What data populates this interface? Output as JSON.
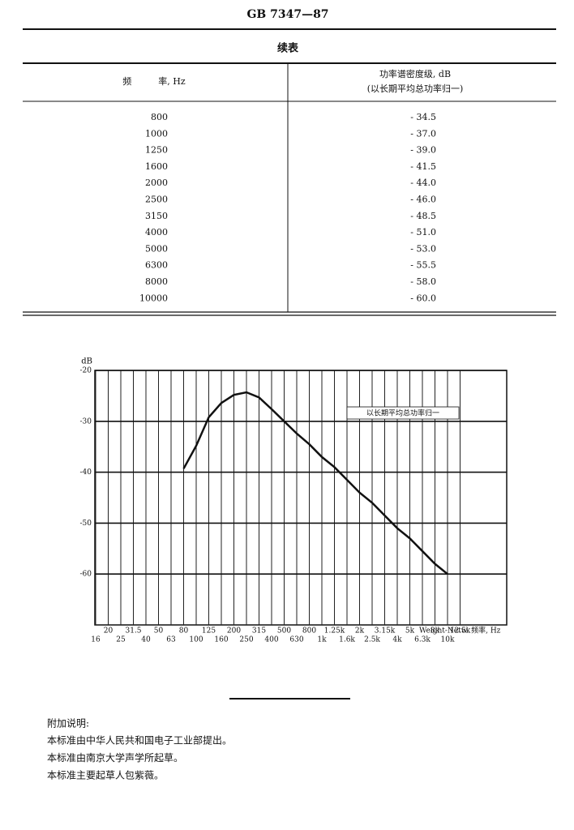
{
  "header": {
    "code": "GB 7347—87"
  },
  "table": {
    "caption": "续表",
    "columns": [
      "频　　　率, Hz",
      [
        "功率谱密度级, dB",
        "(以长期平均总功率归一)"
      ]
    ],
    "rows": [
      [
        "800",
        "- 34.5"
      ],
      [
        "1000",
        "- 37.0"
      ],
      [
        "1250",
        "- 39.0"
      ],
      [
        "1600",
        "- 41.5"
      ],
      [
        "2000",
        "- 44.0"
      ],
      [
        "2500",
        "- 46.0"
      ],
      [
        "3150",
        "- 48.5"
      ],
      [
        "4000",
        "- 51.0"
      ],
      [
        "5000",
        "- 53.0"
      ],
      [
        "6300",
        "- 55.5"
      ],
      [
        "8000",
        "- 58.0"
      ],
      [
        "10000",
        "- 60.0"
      ]
    ]
  },
  "chart_data": {
    "type": "line",
    "y_label": "dB",
    "x_label": "Weight-Netw.  频率, Hz",
    "annotation": "以长期平均总功率归一",
    "categories": [
      "16",
      "20",
      "25",
      "31.5",
      "40",
      "50",
      "63",
      "80",
      "100",
      "125",
      "160",
      "200",
      "250",
      "315",
      "400",
      "500",
      "630",
      "800",
      "1k",
      "1.25k",
      "1.6k",
      "2k",
      "2.5k",
      "3.15k",
      "4k",
      "5k",
      "6.3k",
      "8k",
      "10k",
      "12.5k"
    ],
    "values": [
      null,
      null,
      null,
      null,
      null,
      null,
      null,
      -39.3,
      -34.8,
      -29.2,
      -26.4,
      -24.8,
      -24.3,
      -25.3,
      -27.6,
      -30,
      -32.4,
      -34.5,
      -37,
      -39,
      -41.5,
      -44,
      -46,
      -48.5,
      -51,
      -53,
      -55.5,
      -58,
      -60,
      null
    ],
    "color": "#111111",
    "ylim": [
      -70,
      -20
    ],
    "yticks": [
      -20,
      -30,
      -40,
      -50,
      -60
    ],
    "grid": true
  },
  "notes": {
    "title": "附加说明:",
    "lines": [
      "本标准由中华人民共和国电子工业部提出。",
      "本标准由南京大学声学所起草。",
      "本标准主要起草人包紫薇。"
    ]
  }
}
